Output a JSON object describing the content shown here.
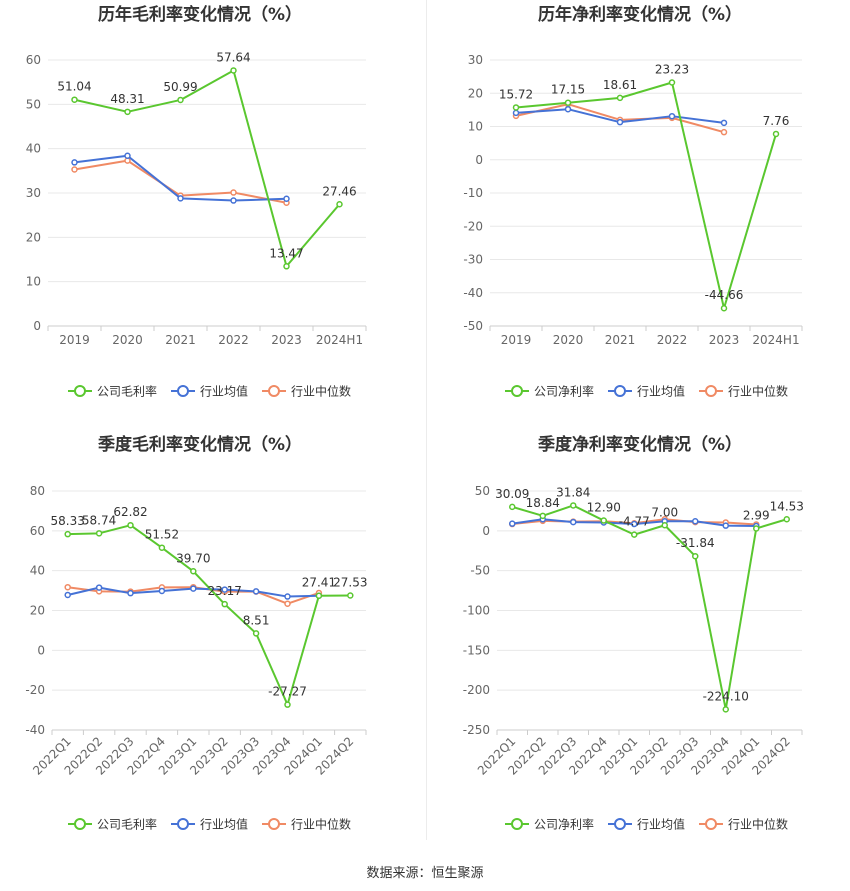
{
  "colors": {
    "company": "#5ac72f",
    "industry_avg": "#4572d6",
    "industry_median": "#f08a64",
    "grid": "#e8e8e8",
    "axis_text": "#666666",
    "title": "#333333"
  },
  "source_text": "数据来源：恒生聚源",
  "chart_data": [
    {
      "type": "line",
      "title": "历年毛利率变化情况（%）",
      "categories": [
        "2019",
        "2020",
        "2021",
        "2022",
        "2023",
        "2024H1"
      ],
      "ylim": [
        0,
        60
      ],
      "yticks": [
        0,
        10,
        20,
        30,
        40,
        50,
        60
      ],
      "rotate_labels": false,
      "legend": [
        "公司毛利率",
        "行业均值",
        "行业中位数"
      ],
      "series": [
        {
          "name": "公司毛利率",
          "values": [
            51.04,
            48.31,
            50.99,
            57.64,
            13.47,
            27.46
          ],
          "labels": [
            "51.04",
            "48.31",
            "50.99",
            "57.64",
            "13.47",
            "27.46"
          ]
        },
        {
          "name": "行业均值",
          "values": [
            36.9,
            38.4,
            28.8,
            28.3,
            28.7,
            null
          ]
        },
        {
          "name": "行业中位数",
          "values": [
            35.3,
            37.3,
            29.4,
            30.1,
            27.8,
            null
          ]
        }
      ]
    },
    {
      "type": "line",
      "title": "历年净利率变化情况（%）",
      "categories": [
        "2019",
        "2020",
        "2021",
        "2022",
        "2023",
        "2024H1"
      ],
      "ylim": [
        -50,
        30
      ],
      "yticks": [
        -50,
        -40,
        -30,
        -20,
        -10,
        0,
        10,
        20,
        30
      ],
      "rotate_labels": false,
      "legend": [
        "公司净利率",
        "行业均值",
        "行业中位数"
      ],
      "series": [
        {
          "name": "公司净利率",
          "values": [
            15.72,
            17.15,
            18.61,
            23.23,
            -44.66,
            7.76
          ],
          "labels": [
            "15.72",
            "17.15",
            "18.61",
            "23.23",
            "-44.66",
            "7.76"
          ]
        },
        {
          "name": "行业均值",
          "values": [
            14.1,
            15.2,
            11.3,
            13.1,
            11.1,
            null
          ]
        },
        {
          "name": "行业中位数",
          "values": [
            13.2,
            16.7,
            12.0,
            12.6,
            8.3,
            null
          ]
        }
      ]
    },
    {
      "type": "line",
      "title": "季度毛利率变化情况（%）",
      "categories": [
        "2022Q1",
        "2022Q2",
        "2022Q3",
        "2022Q4",
        "2023Q1",
        "2023Q2",
        "2023Q3",
        "2023Q4",
        "2024Q1",
        "2024Q2"
      ],
      "ylim": [
        -40,
        80
      ],
      "yticks": [
        -40,
        -20,
        0,
        20,
        40,
        60,
        80
      ],
      "rotate_labels": true,
      "legend": [
        "公司毛利率",
        "行业均值",
        "行业中位数"
      ],
      "series": [
        {
          "name": "公司毛利率",
          "values": [
            58.33,
            58.74,
            62.82,
            51.52,
            39.7,
            23.17,
            8.51,
            -27.27,
            27.41,
            27.53
          ],
          "labels": [
            "58.33",
            "58.74",
            "62.82",
            "51.52",
            "39.70",
            "23.17",
            "8.51",
            "-27.27",
            "27.41",
            "27.53"
          ]
        },
        {
          "name": "行业均值",
          "values": [
            27.8,
            31.5,
            28.7,
            29.8,
            31.0,
            30.5,
            29.6,
            27.0,
            27.4,
            null
          ]
        },
        {
          "name": "行业中位数",
          "values": [
            31.7,
            29.6,
            29.5,
            31.6,
            31.7,
            29.5,
            29.5,
            23.4,
            28.8,
            null
          ]
        }
      ]
    },
    {
      "type": "line",
      "title": "季度净利率变化情况（%）",
      "categories": [
        "2022Q1",
        "2022Q2",
        "2022Q3",
        "2022Q4",
        "2023Q1",
        "2023Q2",
        "2023Q3",
        "2023Q4",
        "2024Q1",
        "2024Q2"
      ],
      "ylim": [
        -250,
        50
      ],
      "yticks": [
        -250,
        -200,
        -150,
        -100,
        -50,
        0,
        50
      ],
      "rotate_labels": true,
      "legend": [
        "公司净利率",
        "行业均值",
        "行业中位数"
      ],
      "series": [
        {
          "name": "公司净利率",
          "values": [
            30.09,
            18.84,
            31.84,
            12.9,
            -4.77,
            7.0,
            -31.84,
            -224.1,
            2.99,
            14.53
          ],
          "labels": [
            "30.09",
            "18.84",
            "31.84",
            "12.90",
            "-4.77",
            "7.00",
            "-31.84",
            "-224.10",
            "2.99",
            "14.53"
          ]
        },
        {
          "name": "行业均值",
          "values": [
            9.0,
            14.5,
            11.0,
            10.5,
            8.5,
            12.0,
            12.0,
            6.5,
            6.0,
            null
          ]
        },
        {
          "name": "行业中位数",
          "values": [
            8.5,
            12.5,
            11.5,
            12.0,
            9.5,
            14.5,
            11.0,
            10.5,
            8.0,
            null
          ]
        }
      ]
    }
  ]
}
